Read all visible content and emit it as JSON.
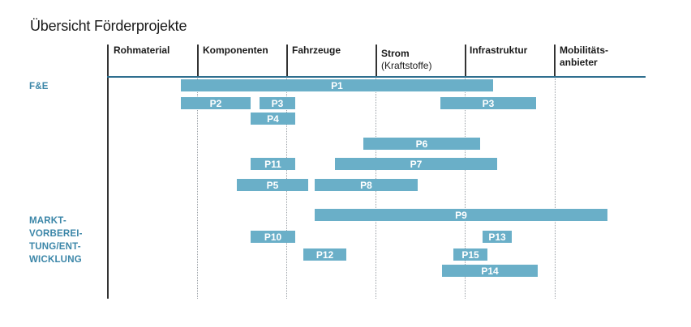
{
  "title": "Übersicht Förderprojekte",
  "columns": [
    {
      "label": "Rohmaterial",
      "sub": ""
    },
    {
      "label": "Komponenten",
      "sub": ""
    },
    {
      "label": "Fahrzeuge",
      "sub": ""
    },
    {
      "label": "Strom",
      "sub": "(Kraftstoffe)"
    },
    {
      "label": "Infrastruktur",
      "sub": ""
    },
    {
      "label": "Mobilitäts-anbieter",
      "sub": ""
    }
  ],
  "column_label_lines": {
    "mobility_1": "Mobilitäts-",
    "mobility_2": "anbieter"
  },
  "row_groups": {
    "fe": "F&E",
    "market_1": "MARKT-",
    "market_2": "VORBEREI-",
    "market_3": "TUNG/ENT-",
    "market_4": "WICKLUNG"
  },
  "projects": [
    {
      "label": "P1"
    },
    {
      "label": "P2"
    },
    {
      "label": "P3"
    },
    {
      "label": "P3"
    },
    {
      "label": "P4"
    },
    {
      "label": "P6"
    },
    {
      "label": "P11"
    },
    {
      "label": "P7"
    },
    {
      "label": "P5"
    },
    {
      "label": "P8"
    },
    {
      "label": "P9"
    },
    {
      "label": "P10"
    },
    {
      "label": "P13"
    },
    {
      "label": "P12"
    },
    {
      "label": "P15"
    },
    {
      "label": "P14"
    }
  ],
  "colors": {
    "bar": "#6aafc8",
    "group_label": "#3b86a8",
    "rule": "#2f6f8f"
  }
}
